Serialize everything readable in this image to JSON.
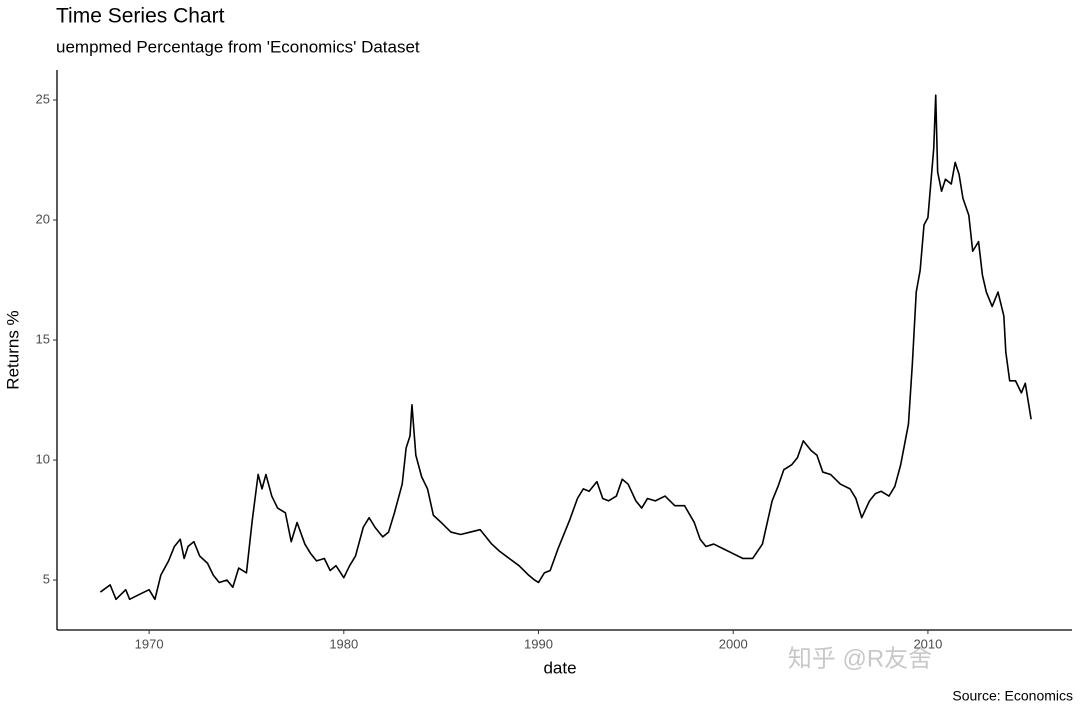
{
  "chart_data": {
    "type": "line",
    "title": "Time Series Chart",
    "subtitle": "uempmed Percentage from 'Economics' Dataset",
    "caption": "Source: Economics",
    "watermark": "知乎 @R友舍",
    "xlabel": "date",
    "ylabel": "Returns %",
    "xlim": [
      1965.27,
      2017.4
    ],
    "xticks": [
      1970,
      1980,
      1990,
      2000,
      2010
    ],
    "ylim": [
      2.92,
      26.25
    ],
    "yticks": [
      5,
      10,
      15,
      20,
      25
    ],
    "grid": false,
    "x": [
      1967.5,
      1968,
      1968.3,
      1968.8,
      1969,
      1969.5,
      1970,
      1970.3,
      1970.6,
      1971,
      1971.3,
      1971.6,
      1971.8,
      1972,
      1972.3,
      1972.6,
      1973,
      1973.3,
      1973.6,
      1974,
      1974.3,
      1974.6,
      1975,
      1975.3,
      1975.6,
      1975.8,
      1976,
      1976.3,
      1976.6,
      1977,
      1977.3,
      1977.6,
      1978,
      1978.3,
      1978.6,
      1979,
      1979.3,
      1979.6,
      1980,
      1980.3,
      1980.6,
      1981,
      1981.3,
      1981.6,
      1982,
      1982.3,
      1982.6,
      1983,
      1983.2,
      1983.4,
      1983.5,
      1983.7,
      1984,
      1984.3,
      1984.6,
      1985,
      1985.5,
      1986,
      1986.5,
      1987,
      1987.3,
      1987.6,
      1988,
      1988.5,
      1989,
      1989.5,
      1989.8,
      1990,
      1990.3,
      1990.6,
      1991,
      1991.3,
      1991.6,
      1992,
      1992.3,
      1992.6,
      1993,
      1993.3,
      1993.6,
      1994,
      1994.3,
      1994.6,
      1995,
      1995.3,
      1995.6,
      1996,
      1996.5,
      1997,
      1997.5,
      1998,
      1998.3,
      1998.6,
      1999,
      1999.5,
      2000,
      2000.5,
      2001,
      2001.5,
      2002,
      2002.3,
      2002.6,
      2003,
      2003.3,
      2003.6,
      2004,
      2004.3,
      2004.6,
      2005,
      2005.5,
      2006,
      2006.3,
      2006.6,
      2007,
      2007.3,
      2007.6,
      2008,
      2008.3,
      2008.6,
      2009,
      2009.2,
      2009.4,
      2009.6,
      2009.8,
      2010,
      2010.3,
      2010.4,
      2010.5,
      2010.7,
      2010.9,
      2011.2,
      2011.4,
      2011.6,
      2011.8,
      2012.1,
      2012.3,
      2012.6,
      2012.8,
      2013,
      2013.3,
      2013.6,
      2013.9,
      2014,
      2014.2,
      2014.5,
      2014.8,
      2015,
      2015.3
    ],
    "series": [
      {
        "name": "uempmed",
        "color": "#000000",
        "values": [
          4.5,
          4.8,
          4.2,
          4.6,
          4.2,
          4.4,
          4.6,
          4.2,
          5.2,
          5.8,
          6.4,
          6.7,
          5.9,
          6.4,
          6.6,
          6.0,
          5.7,
          5.2,
          4.9,
          5.0,
          4.7,
          5.5,
          5.3,
          7.5,
          9.4,
          8.8,
          9.4,
          8.5,
          8.0,
          7.8,
          6.6,
          7.4,
          6.5,
          6.1,
          5.8,
          5.9,
          5.4,
          5.6,
          5.1,
          5.6,
          6.0,
          7.2,
          7.6,
          7.2,
          6.8,
          7.0,
          7.8,
          9.0,
          10.5,
          11.0,
          12.3,
          10.2,
          9.3,
          8.8,
          7.7,
          7.4,
          7.0,
          6.9,
          7.0,
          7.1,
          6.8,
          6.5,
          6.2,
          5.9,
          5.6,
          5.2,
          5.0,
          4.9,
          5.3,
          5.4,
          6.3,
          6.9,
          7.5,
          8.4,
          8.8,
          8.7,
          9.1,
          8.4,
          8.3,
          8.5,
          9.2,
          9.0,
          8.3,
          8.0,
          8.4,
          8.3,
          8.5,
          8.1,
          8.1,
          7.4,
          6.7,
          6.4,
          6.5,
          6.3,
          6.1,
          5.9,
          5.9,
          6.5,
          8.3,
          8.9,
          9.6,
          9.8,
          10.1,
          10.8,
          10.4,
          10.2,
          9.5,
          9.4,
          9.0,
          8.8,
          8.4,
          7.6,
          8.3,
          8.6,
          8.7,
          8.5,
          8.9,
          9.8,
          11.5,
          14.0,
          17.0,
          17.9,
          19.8,
          20.1,
          23.0,
          25.2,
          22.0,
          21.2,
          21.7,
          21.5,
          22.4,
          21.9,
          20.9,
          20.2,
          18.7,
          19.1,
          17.7,
          17.0,
          16.4,
          17.0,
          16.0,
          14.5,
          13.3,
          13.3,
          12.8,
          13.2,
          11.7
        ]
      }
    ]
  }
}
